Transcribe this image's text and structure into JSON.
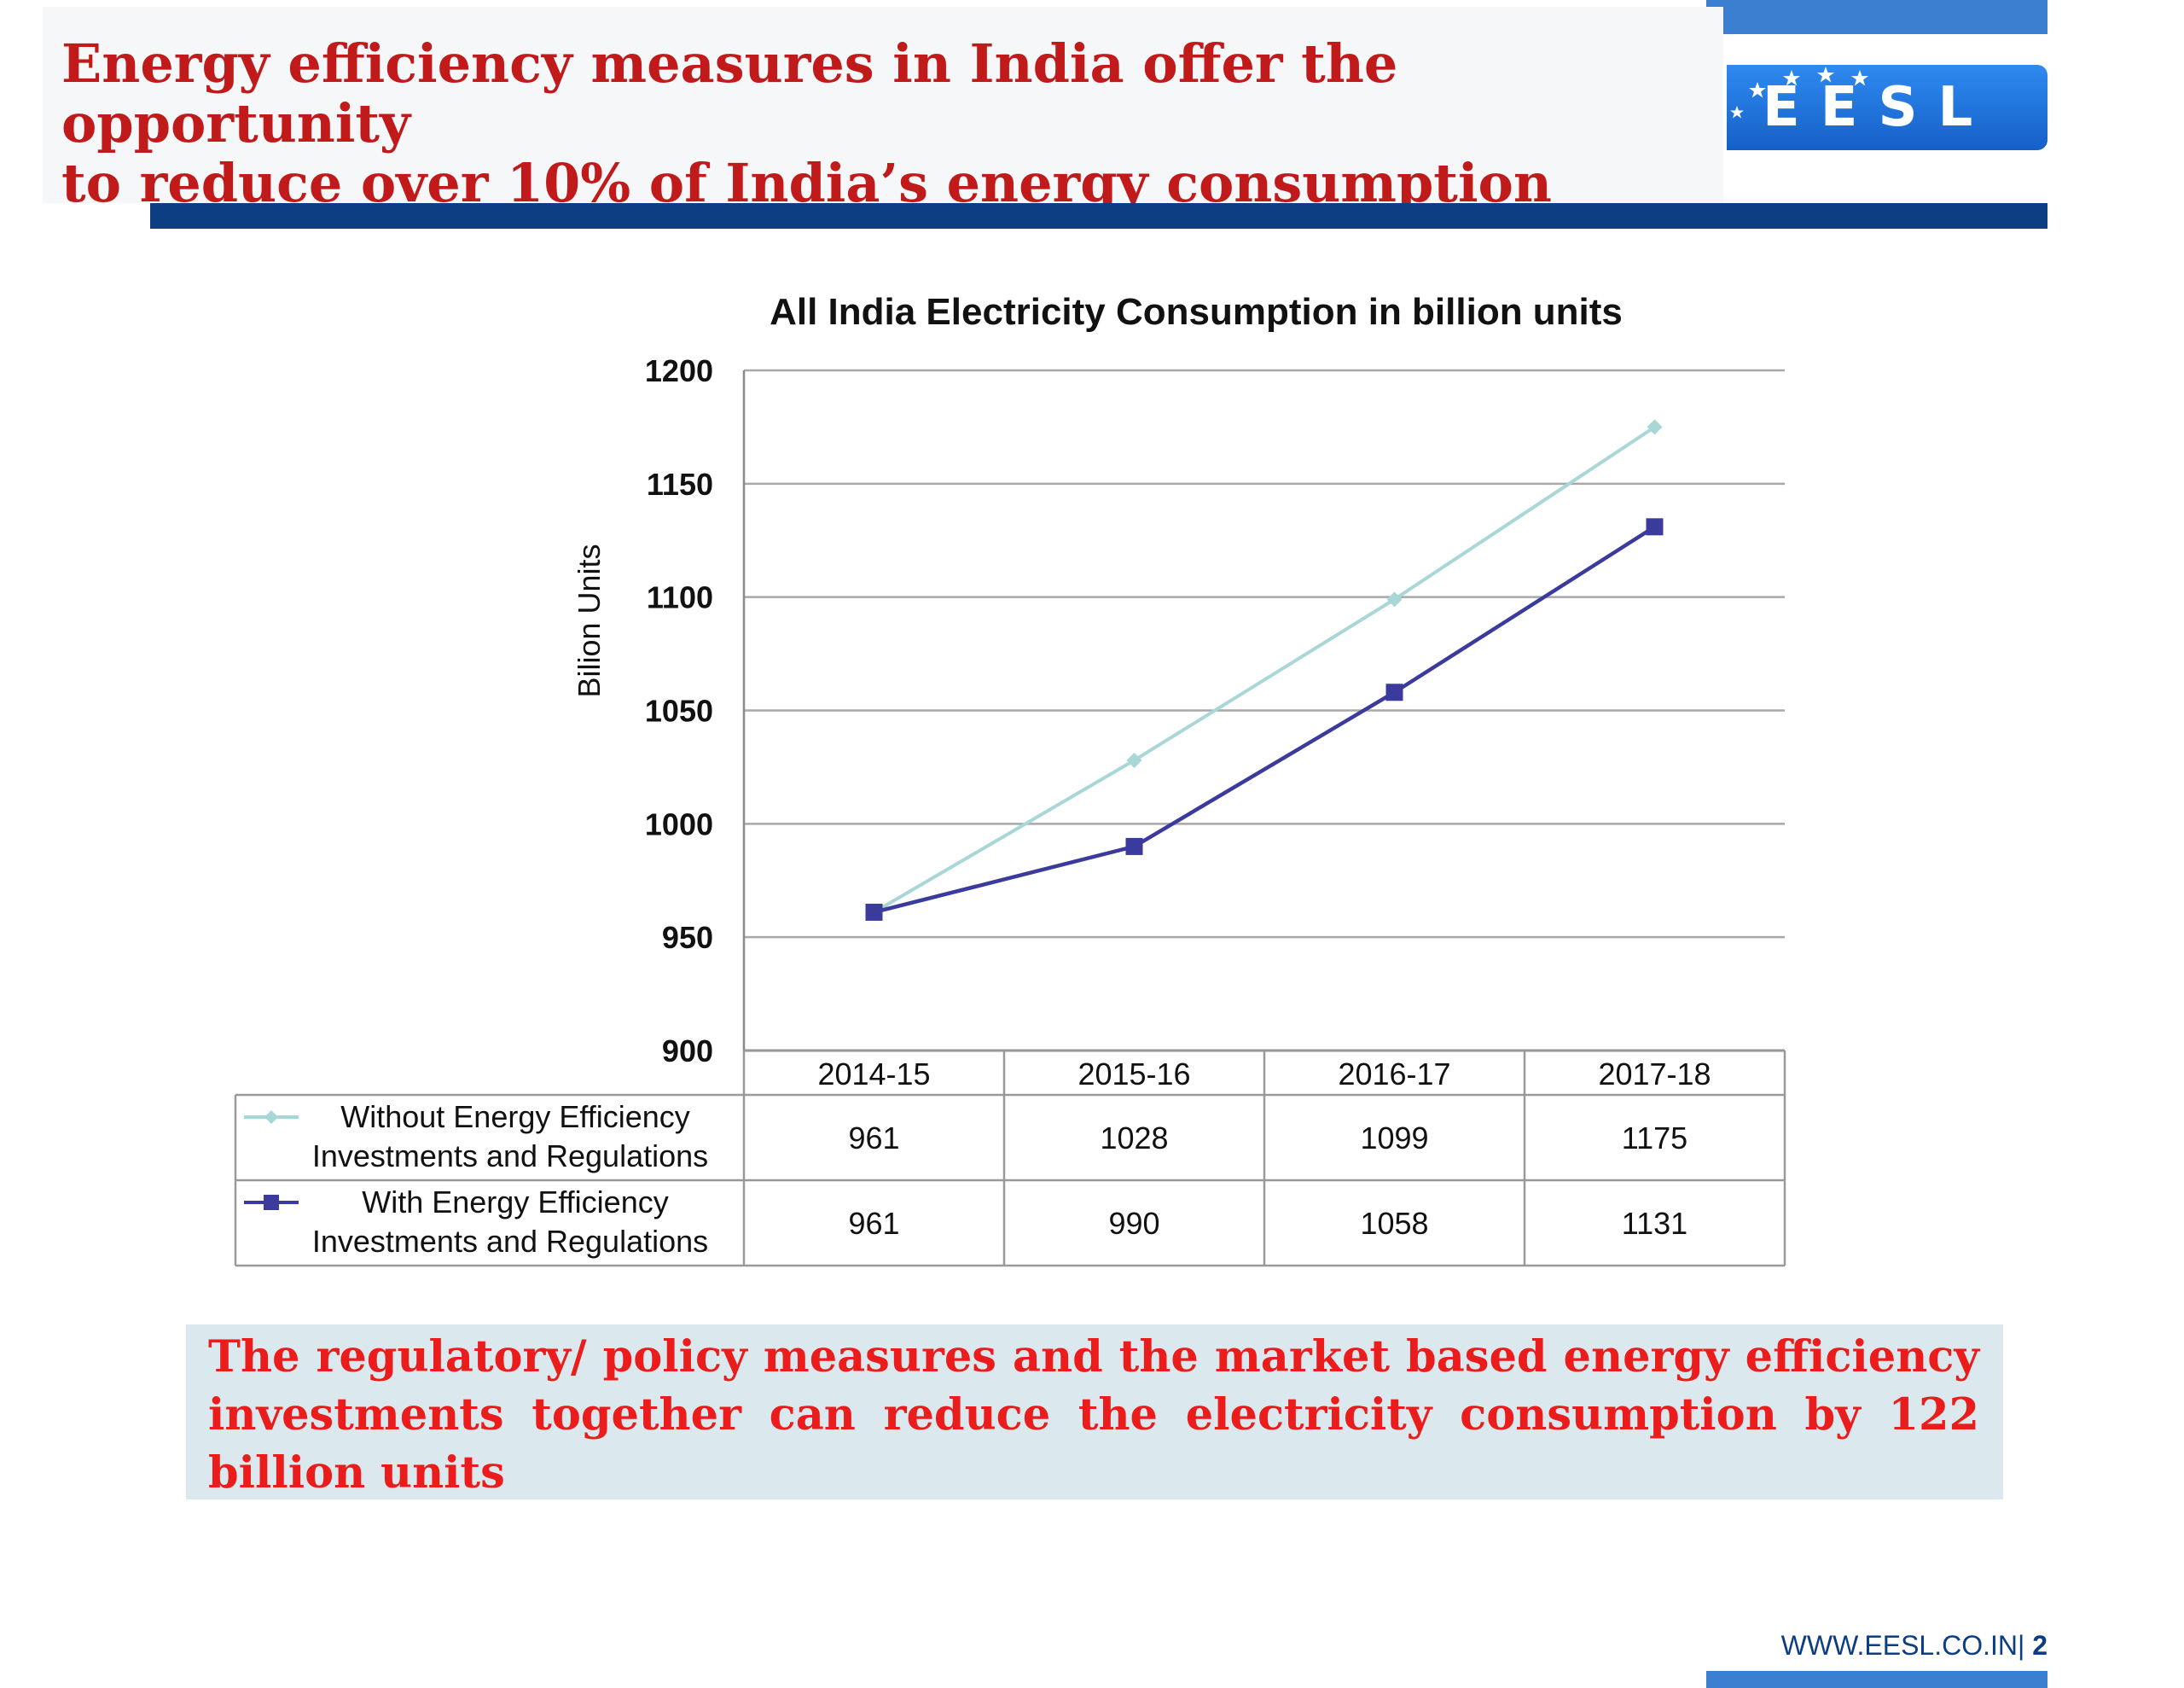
{
  "slide": {
    "title_line1": "Energy efficiency measures in India offer the opportunity",
    "title_line2": "to reduce over 10% of India’s energy consumption",
    "logo_text": "EESL",
    "callout_text": "The regulatory/ policy measures and the market based energy efficiency investments together can reduce the electricity consumption by 122 billion units",
    "footer_url": "WWW.EESL.CO.IN",
    "footer_separator": "| ",
    "page_number": "2"
  },
  "colors": {
    "title_red": "#c01a1a",
    "callout_red": "#ea1c1c",
    "navy": "#0d3d82",
    "accent_blue": "#3b7fd0",
    "callout_bg": "#dbe9ee",
    "series_without": "#a9d6d6",
    "series_with": "#3b3b9e"
  },
  "chart_data": {
    "type": "line",
    "title": "All India Electricity Consumption in billion units",
    "xlabel": "",
    "ylabel": "Bilion Units",
    "categories": [
      "2014-15",
      "2015-16",
      "2016-17",
      "2017-18"
    ],
    "ylim": [
      900,
      1200
    ],
    "yticks": [
      900,
      950,
      1000,
      1050,
      1100,
      1150,
      1200
    ],
    "grid": true,
    "data_table": true,
    "series": [
      {
        "name": "Without Energy Efficiency Investments and Regulations",
        "label_lines": [
          "Without Energy Efficiency",
          "Investments and Regulations"
        ],
        "marker": "diamond",
        "values": [
          961,
          1028,
          1099,
          1175
        ]
      },
      {
        "name": "With Energy Efficiency Investments and Regulations",
        "label_lines": [
          "With Energy Efficiency",
          "Investments and Regulations"
        ],
        "marker": "square",
        "values": [
          961,
          990,
          1058,
          1131
        ]
      }
    ]
  }
}
